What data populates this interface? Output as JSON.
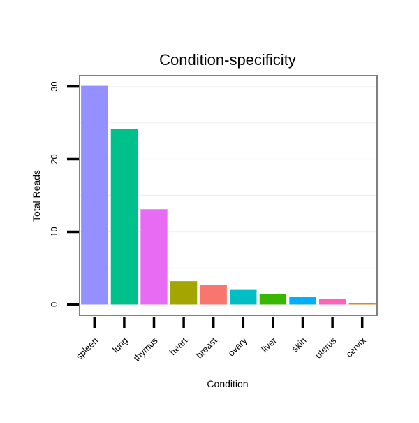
{
  "chart_data": {
    "type": "bar",
    "title": "Condition-specificity",
    "xlabel": "Condition",
    "ylabel": "Total Reads",
    "categories": [
      "spleen",
      "lung",
      "thymus",
      "heart",
      "breast",
      "ovary",
      "liver",
      "skin",
      "uterus",
      "cervix"
    ],
    "values": [
      30.1,
      24.1,
      13.1,
      3.2,
      2.7,
      2.0,
      1.4,
      1.0,
      0.8,
      0.2
    ],
    "colors": [
      "#9590FF",
      "#00C08B",
      "#E76BF3",
      "#A3A500",
      "#F8766D",
      "#00BFC4",
      "#39B600",
      "#00B0F6",
      "#FF62BC",
      "#D89000"
    ],
    "yticks": [
      0,
      10,
      20,
      30
    ],
    "ylim": [
      -1.5,
      31.5
    ],
    "grid": true,
    "legend": "none"
  }
}
